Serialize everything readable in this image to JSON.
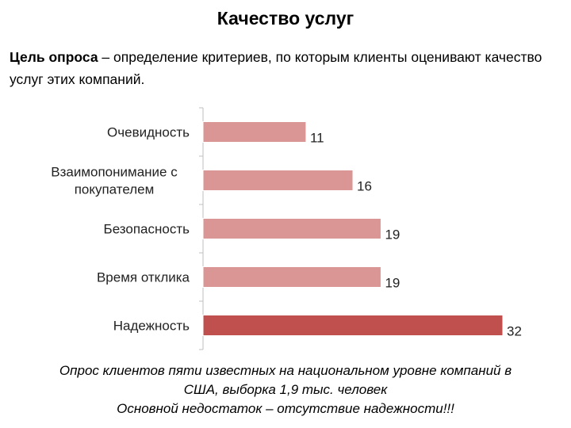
{
  "slide": {
    "title": "Качество услуг",
    "intro_bold": "Цель опроса",
    "intro_rest": " – определение критериев, по которым клиенты оценивают качество услуг этих компаний.",
    "footer_line1": "Опрос клиентов  пяти известных на национальном уровне компаний в",
    "footer_line2": "США, выборка 1,9 тыс. человек",
    "footer_line3": "Основной недостаток – отсутствие надежности!!!"
  },
  "chart_data": {
    "type": "bar",
    "orientation": "horizontal",
    "categories": [
      "Очевидность",
      "Взаимопонимание с покупателем",
      "Безопасность",
      "Время отклика",
      "Надежность"
    ],
    "category_label_lines": [
      [
        "Очевидность"
      ],
      [
        "Взаимопонимание с",
        "покупателем"
      ],
      [
        "Безопасность"
      ],
      [
        "Время отклика"
      ],
      [
        "Надежность"
      ]
    ],
    "values": [
      11,
      16,
      19,
      19,
      32
    ],
    "xlim": [
      0,
      32
    ],
    "data_labels": true,
    "grid": false,
    "legend": "none",
    "colors": {
      "default": "#d99694",
      "highlight": "#c0504d",
      "axis": "#bfbfbf",
      "border": "#ffffff"
    },
    "highlight_index": 4
  }
}
